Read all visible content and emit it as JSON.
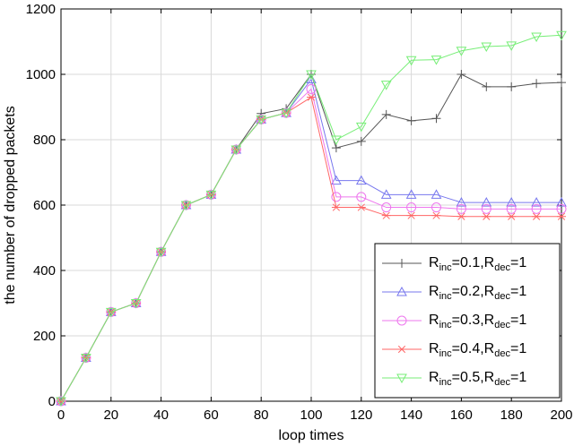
{
  "chart_data": {
    "type": "line",
    "title": "",
    "xlabel": "loop times",
    "ylabel": "the number of dropped packets",
    "xlim": [
      0,
      200
    ],
    "ylim": [
      0,
      1200
    ],
    "xticks": [
      0,
      20,
      40,
      60,
      80,
      100,
      120,
      140,
      160,
      180,
      200
    ],
    "yticks": [
      0,
      200,
      400,
      600,
      800,
      1000,
      1200
    ],
    "grid": true,
    "legend_position": "bottom-right",
    "x": [
      0,
      10,
      20,
      30,
      40,
      50,
      60,
      70,
      80,
      90,
      100,
      110,
      120,
      130,
      140,
      150,
      160,
      170,
      180,
      190,
      200
    ],
    "series": [
      {
        "legend": {
          "base": "R",
          "sub1": "inc",
          "mid": "=0.1,R",
          "sub2": "dec",
          "tail": "=1"
        },
        "color": "#555555",
        "marker": "plus",
        "values": [
          0,
          133,
          273,
          300,
          457,
          600,
          632,
          770,
          880,
          895,
          1000,
          775,
          795,
          877,
          858,
          865,
          1000,
          962,
          962,
          972,
          975
        ]
      },
      {
        "legend": {
          "base": "R",
          "sub1": "inc",
          "mid": "=0.2,R",
          "sub2": "dec",
          "tail": "=1"
        },
        "color": "#7777ee",
        "marker": "triangle-up",
        "values": [
          0,
          133,
          273,
          300,
          457,
          600,
          632,
          770,
          862,
          882,
          985,
          675,
          675,
          632,
          632,
          632,
          608,
          608,
          608,
          608,
          608
        ]
      },
      {
        "legend": {
          "base": "R",
          "sub1": "inc",
          "mid": "=0.3,R",
          "sub2": "dec",
          "tail": "=1"
        },
        "color": "#ee77ee",
        "marker": "circle",
        "values": [
          0,
          133,
          273,
          300,
          457,
          600,
          632,
          770,
          862,
          882,
          955,
          625,
          625,
          593,
          593,
          593,
          588,
          588,
          588,
          588,
          588
        ]
      },
      {
        "legend": {
          "base": "R",
          "sub1": "inc",
          "mid": "=0.4,R",
          "sub2": "dec",
          "tail": "=1"
        },
        "color": "#ff6666",
        "marker": "asterisk",
        "values": [
          0,
          133,
          273,
          300,
          457,
          600,
          632,
          770,
          862,
          882,
          930,
          593,
          593,
          568,
          568,
          568,
          565,
          565,
          565,
          565,
          565
        ]
      },
      {
        "legend": {
          "base": "R",
          "sub1": "inc",
          "mid": "=0.5,R",
          "sub2": "dec",
          "tail": "=1"
        },
        "color": "#77ee77",
        "marker": "triangle-down",
        "values": [
          0,
          133,
          273,
          300,
          457,
          600,
          632,
          770,
          862,
          882,
          1000,
          800,
          840,
          968,
          1043,
          1045,
          1072,
          1085,
          1088,
          1115,
          1120
        ]
      }
    ]
  }
}
